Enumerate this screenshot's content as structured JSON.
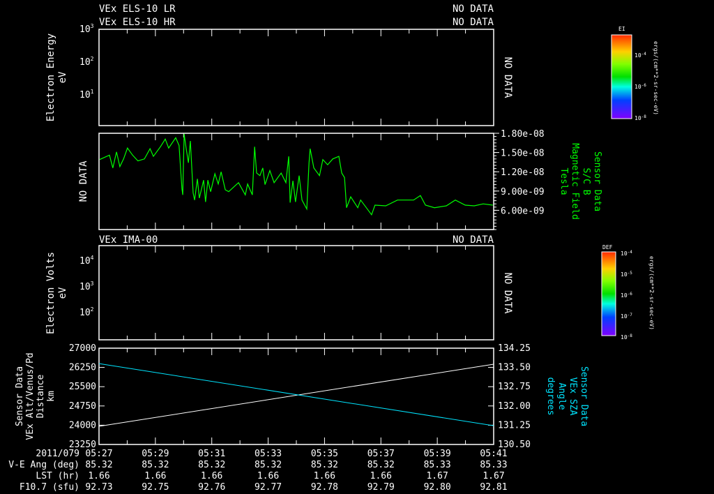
{
  "colors": {
    "background": "#000000",
    "axes": "#ffffff",
    "mag_field": "#00ff00",
    "sza": "#00e5ff",
    "distance": "#ffffff"
  },
  "panel1": {
    "title_lines": [
      "VEx ELS-10 LR",
      "VEx ELS-10 HR"
    ],
    "status_lines": [
      "NO DATA",
      "NO DATA"
    ],
    "ylabel": [
      "Electron Energy",
      "eV"
    ],
    "yticks": [
      {
        "base": "10",
        "exp": "3"
      },
      {
        "base": "10",
        "exp": "2"
      },
      {
        "base": "10",
        "exp": "1"
      }
    ],
    "no_data": "NO DATA",
    "colorbar": {
      "title": "EI",
      "ticks": [
        {
          "base": "10",
          "exp": "-4"
        },
        {
          "base": "10",
          "exp": "-6"
        },
        {
          "base": "10",
          "exp": "-8"
        }
      ],
      "units": "ergs/(cm**2-sr-sec-eV)"
    }
  },
  "panel3": {
    "title": "VEx IMA-00",
    "status": "NO DATA",
    "ylabel": [
      "Electron Volts",
      "eV"
    ],
    "yticks": [
      {
        "base": "10",
        "exp": "4"
      },
      {
        "base": "10",
        "exp": "3"
      },
      {
        "base": "10",
        "exp": "2"
      }
    ],
    "no_data": "NO DATA",
    "colorbar": {
      "title": "DEF",
      "ticks": [
        {
          "base": "10",
          "exp": "-4"
        },
        {
          "base": "10",
          "exp": "-5"
        },
        {
          "base": "10",
          "exp": "-6"
        },
        {
          "base": "10",
          "exp": "-7"
        },
        {
          "base": "10",
          "exp": "-8"
        }
      ],
      "units": "ergs/(cm**2-sr-sec-eV)"
    }
  },
  "footer": {
    "row_labels": [
      "2011/079",
      "V-E Ang (deg)",
      "LST (hr)",
      "F10.7 (sfu)"
    ],
    "times": [
      "05:27",
      "05:29",
      "05:31",
      "05:33",
      "05:35",
      "05:37",
      "05:39",
      "05:41"
    ],
    "ve_ang": [
      "85.32",
      "85.32",
      "85.32",
      "85.32",
      "85.32",
      "85.32",
      "85.33",
      "85.33"
    ],
    "lst": [
      "1.66",
      "1.66",
      "1.66",
      "1.66",
      "1.66",
      "1.66",
      "1.67",
      "1.67"
    ],
    "f107": [
      "92.73",
      "92.75",
      "92.76",
      "92.77",
      "92.78",
      "92.79",
      "92.80",
      "92.81"
    ]
  },
  "chart_data": [
    {
      "type": "line",
      "title": "Sensor Data S/C B Magnetic Field",
      "left_label": "NO DATA",
      "ylabel": [
        "Sensor Data",
        "S/C B",
        "Magnetic Field",
        "Tesla"
      ],
      "ytick_labels": [
        "1.80e-08",
        "1.50e-08",
        "1.20e-08",
        "9.00e-09",
        "6.00e-09"
      ],
      "ytick_values": [
        18,
        15,
        12,
        9,
        6
      ],
      "y_units_scale": "1e-9 T",
      "ylim": [
        3,
        18
      ],
      "xlim_minutes_after_0527": [
        0,
        14
      ],
      "series": [
        {
          "name": "S/C B",
          "color": "#00ff00",
          "x": [
            0.02,
            0.37,
            0.49,
            0.62,
            0.74,
            0.87,
            1.01,
            1.19,
            1.38,
            1.61,
            1.81,
            1.93,
            2.18,
            2.35,
            2.47,
            2.72,
            2.84,
            2.94,
            2.97,
            3.02,
            3.09,
            3.17,
            3.24,
            3.34,
            3.39,
            3.49,
            3.56,
            3.71,
            3.78,
            3.86,
            3.96,
            4.11,
            4.23,
            4.33,
            4.48,
            4.6,
            4.82,
            4.95,
            5.19,
            5.27,
            5.44,
            5.52,
            5.59,
            5.71,
            5.81,
            5.89,
            6.06,
            6.21,
            6.46,
            6.63,
            6.73,
            6.78,
            6.88,
            6.97,
            7.1,
            7.2,
            7.37,
            7.45,
            7.49,
            7.62,
            7.82,
            7.94,
            8.11,
            8.29,
            8.51,
            8.61,
            8.71,
            8.78,
            8.93,
            9.18,
            9.28,
            9.67,
            9.79,
            10.17,
            10.59,
            10.83,
            11.16,
            11.4,
            11.58,
            11.9,
            12.32,
            12.64,
            12.99,
            13.31,
            13.63,
            13.97
          ],
          "y": [
            13.9,
            14.6,
            12.6,
            15.1,
            12.8,
            14.0,
            15.7,
            14.6,
            13.7,
            14.0,
            15.6,
            14.4,
            15.9,
            17.1,
            15.7,
            17.3,
            16.1,
            9.4,
            8.4,
            17.9,
            15.7,
            13.4,
            16.8,
            8.7,
            7.6,
            10.9,
            7.9,
            10.7,
            7.3,
            10.7,
            8.9,
            11.7,
            10.1,
            12.0,
            9.2,
            8.9,
            9.8,
            10.3,
            8.4,
            10.1,
            8.4,
            15.9,
            11.8,
            11.4,
            12.6,
            10.0,
            12.2,
            10.3,
            11.8,
            10.3,
            14.4,
            7.2,
            10.6,
            7.3,
            11.4,
            7.6,
            6.2,
            13.4,
            15.6,
            12.6,
            11.4,
            13.9,
            13.1,
            14.0,
            14.4,
            11.8,
            11.1,
            6.4,
            8.1,
            6.4,
            7.6,
            5.3,
            6.8,
            6.7,
            7.6,
            7.6,
            7.6,
            8.3,
            6.8,
            6.4,
            6.7,
            7.6,
            6.8,
            6.7,
            7.0,
            6.8
          ]
        }
      ]
    },
    {
      "type": "line",
      "left_ylabel": [
        "Sensor Data",
        "VEx Alt/Venus/Pd",
        "Distance",
        "km"
      ],
      "right_ylabel": [
        "Sensor Data",
        "VEx SZA",
        "Angle",
        "degrees"
      ],
      "left_ytick_labels": [
        "27000",
        "26250",
        "25500",
        "24750",
        "24000",
        "23250"
      ],
      "left_ytick_values": [
        27000,
        26250,
        25500,
        24750,
        24000,
        23250
      ],
      "left_ylim": [
        23250,
        27000
      ],
      "right_ytick_labels": [
        "134.25",
        "133.50",
        "132.75",
        "132.00",
        "131.25",
        "130.50"
      ],
      "right_ytick_values": [
        134.25,
        133.5,
        132.75,
        132.0,
        131.25,
        130.5
      ],
      "right_ylim": [
        130.5,
        134.25
      ],
      "xlim_minutes_after_0527": [
        0,
        14
      ],
      "series": [
        {
          "name": "Distance",
          "axis": "left",
          "color": "#ffffff",
          "x": [
            0,
            14
          ],
          "y": [
            23957,
            26375
          ]
        },
        {
          "name": "SZA",
          "axis": "right",
          "color": "#00e5ff",
          "x": [
            0,
            14
          ],
          "y": [
            133.65,
            131.23
          ]
        }
      ]
    }
  ]
}
